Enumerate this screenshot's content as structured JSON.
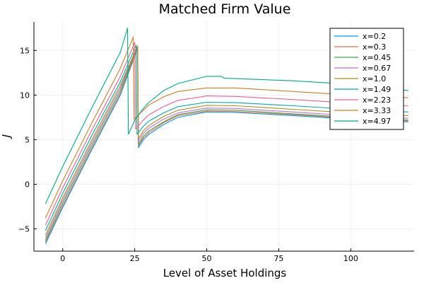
{
  "chart_data": {
    "type": "line",
    "title": "Matched Firm Value",
    "xlabel": "Level of Asset Holdings",
    "ylabel": "J",
    "xlim": [
      -10,
      122
    ],
    "ylim": [
      -7.5,
      18.2
    ],
    "xticks": [
      0,
      25,
      50,
      75,
      100
    ],
    "xtick_labels": [
      "0",
      "25",
      "50",
      "75",
      "100"
    ],
    "yticks": [
      -5,
      0,
      5,
      10,
      15
    ],
    "ytick_labels": [
      "−5",
      "0",
      "5",
      "10",
      "15"
    ],
    "grid": true,
    "legend_position": "top-right",
    "series": [
      {
        "name": "x=0.2",
        "color": "#009AFA",
        "x": [
          -6,
          0,
          10,
          20,
          26,
          26.3,
          28,
          30,
          35,
          40,
          50,
          60,
          80,
          100,
          120
        ],
        "y": [
          -6.7,
          -2.6,
          3.8,
          10.0,
          15.2,
          4.1,
          5.0,
          5.6,
          6.7,
          7.5,
          8.1,
          8.05,
          7.7,
          7.3,
          7.0
        ]
      },
      {
        "name": "x=0.3",
        "color": "#E36F47",
        "x": [
          -6,
          0,
          10,
          20,
          26,
          26.3,
          28,
          30,
          35,
          40,
          50,
          60,
          80,
          100,
          120
        ],
        "y": [
          -6.5,
          -2.4,
          4.0,
          10.2,
          15.3,
          4.3,
          5.2,
          5.8,
          6.9,
          7.7,
          8.2,
          8.15,
          7.8,
          7.4,
          7.1
        ]
      },
      {
        "name": "x=0.45",
        "color": "#3EA44E",
        "x": [
          -6,
          0,
          10,
          20,
          26,
          26.3,
          28,
          30,
          35,
          40,
          50,
          60,
          80,
          100,
          120
        ],
        "y": [
          -6.3,
          -2.1,
          4.3,
          10.5,
          15.4,
          4.5,
          5.4,
          6.0,
          7.0,
          7.8,
          8.35,
          8.3,
          7.9,
          7.5,
          7.2
        ]
      },
      {
        "name": "x=0.67",
        "color": "#C271D2",
        "x": [
          -6,
          0,
          10,
          20,
          26,
          26.3,
          28,
          30,
          35,
          40,
          50,
          60,
          80,
          100,
          120
        ],
        "y": [
          -6.0,
          -1.8,
          4.6,
          10.8,
          15.5,
          4.8,
          5.7,
          6.3,
          7.3,
          8.0,
          8.55,
          8.5,
          8.1,
          7.7,
          7.4
        ]
      },
      {
        "name": "x=1.0",
        "color": "#AC8E18",
        "x": [
          -6,
          0,
          10,
          20,
          26,
          26.3,
          28,
          30,
          35,
          40,
          50,
          60,
          80,
          100,
          120
        ],
        "y": [
          -5.7,
          -1.5,
          4.9,
          11.1,
          15.5,
          5.1,
          6.0,
          6.6,
          7.6,
          8.3,
          8.85,
          8.8,
          8.4,
          8.0,
          7.7
        ]
      },
      {
        "name": "x=1.49",
        "color": "#00A9AD",
        "x": [
          -6,
          0,
          10,
          20,
          25.5,
          25.8,
          28,
          30,
          35,
          40,
          50,
          60,
          80,
          100,
          120
        ],
        "y": [
          -5.2,
          -1.0,
          5.4,
          11.5,
          15.6,
          5.6,
          6.5,
          7.1,
          8.0,
          8.7,
          9.2,
          9.15,
          8.8,
          8.4,
          8.1
        ]
      },
      {
        "name": "x=2.23",
        "color": "#ED5E93",
        "x": [
          -6,
          0,
          10,
          20,
          25,
          25.3,
          28,
          30,
          35,
          40,
          50,
          60,
          80,
          100,
          120
        ],
        "y": [
          -4.6,
          -0.4,
          6.0,
          12.1,
          15.9,
          6.2,
          7.2,
          7.8,
          8.7,
          9.4,
          9.9,
          9.85,
          9.5,
          9.1,
          8.8
        ]
      },
      {
        "name": "x=3.33",
        "color": "#C68125",
        "x": [
          -6,
          0,
          10,
          20,
          24.5,
          24.8,
          28,
          30,
          35,
          40,
          50,
          60,
          75,
          80,
          85,
          100,
          120
        ],
        "y": [
          -3.8,
          0.4,
          6.8,
          13.0,
          16.5,
          7.3,
          8.3,
          8.9,
          9.8,
          10.4,
          10.8,
          10.8,
          10.5,
          10.4,
          10.3,
          10.0,
          9.7
        ]
      },
      {
        "name": "x=4.97",
        "color": "#00A98D",
        "x": [
          -6,
          0,
          10,
          20,
          22.5,
          22.8,
          25,
          28,
          30,
          35,
          40,
          50,
          55,
          56,
          60,
          80,
          100,
          120
        ],
        "y": [
          -2.2,
          2.0,
          8.5,
          14.8,
          17.5,
          5.6,
          7.2,
          8.5,
          9.2,
          10.5,
          11.3,
          12.1,
          12.1,
          11.9,
          11.85,
          11.6,
          11.2,
          10.5
        ]
      }
    ]
  }
}
